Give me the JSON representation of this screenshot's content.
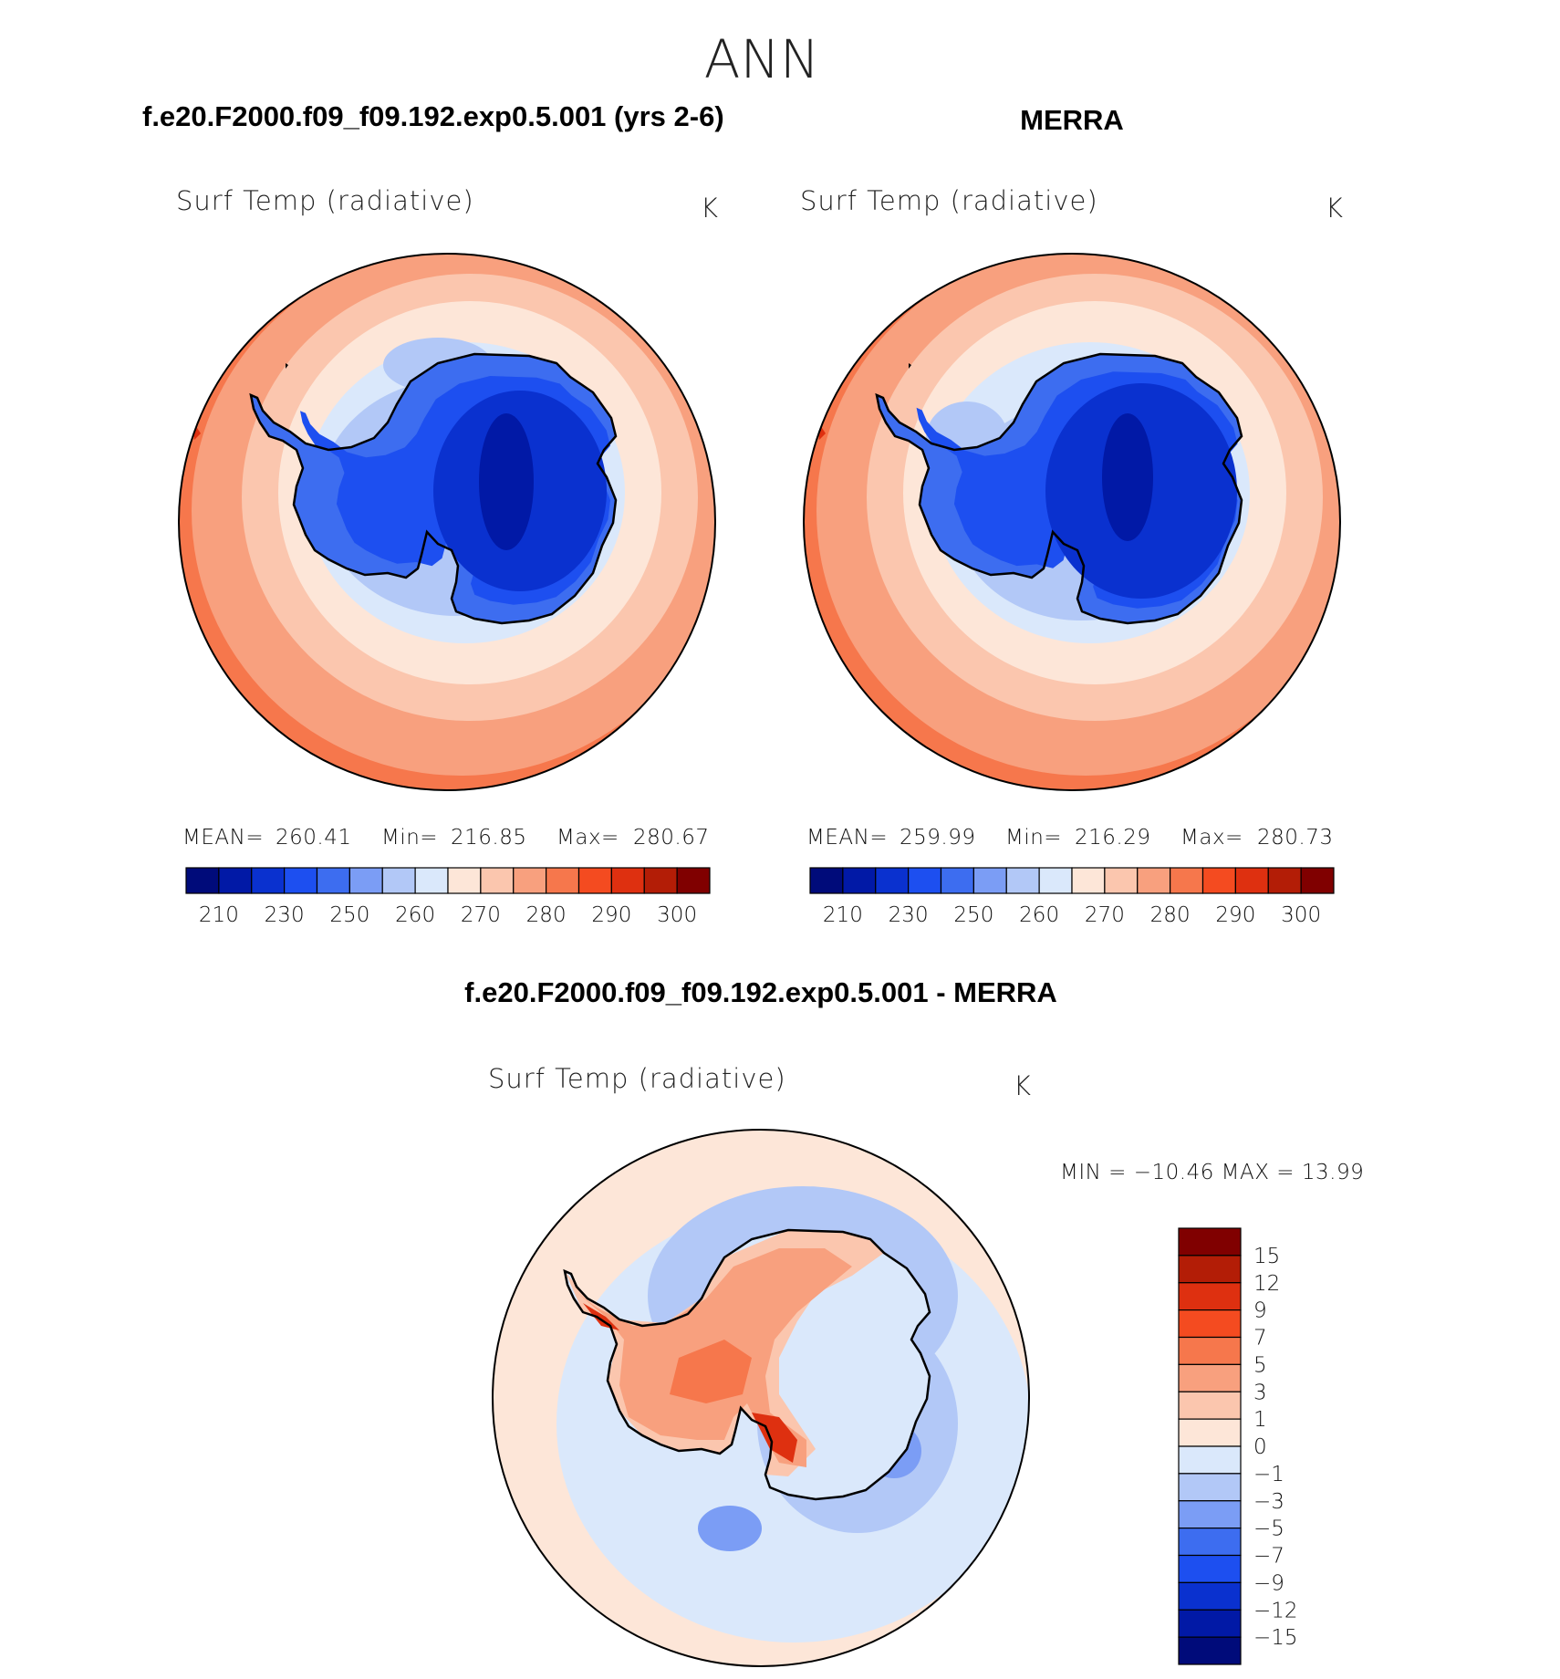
{
  "figure": {
    "season": "ANN",
    "panels": [
      {
        "id": "model",
        "header": "f.e20.F2000.f09_f09.192.exp0.5.001 (yrs 2-6)",
        "variable": "Surf Temp (radiative)",
        "units": "K",
        "stats": {
          "mean_label": "MEAN=",
          "mean": "260.41",
          "min_label": "Min=",
          "min": "216.85",
          "max_label": "Max=",
          "max": "280.67"
        }
      },
      {
        "id": "obs",
        "header": "MERRA",
        "variable": "Surf Temp (radiative)",
        "units": "K",
        "stats": {
          "mean_label": "MEAN=",
          "mean": "259.99",
          "min_label": "Min=",
          "min": "216.29",
          "max_label": "Max=",
          "max": "280.73"
        }
      }
    ],
    "difference": {
      "header": "f.e20.F2000.f09_f09.192.exp0.5.001 - MERRA",
      "variable": "Surf Temp (radiative)",
      "units": "K",
      "minmax": "MIN = −10.46 MAX =   13.99"
    }
  },
  "chart_data": {
    "type": "heatmap",
    "projection": "south polar stereographic",
    "abs_colorbar": {
      "tick_labels": [
        "210",
        "230",
        "250",
        "260",
        "270",
        "280",
        "290",
        "300"
      ],
      "colors": [
        "#000b7a",
        "#0119a6",
        "#0a31cf",
        "#1d4ff0",
        "#3d6df0",
        "#7b9df5",
        "#b2c8f7",
        "#dae8fb",
        "#fde6d8",
        "#fbc6ae",
        "#f8a07e",
        "#f6774c",
        "#f44b20",
        "#de3010",
        "#b31d06",
        "#800000"
      ]
    },
    "diff_colorbar": {
      "tick_labels": [
        "15",
        "12",
        "9",
        "7",
        "5",
        "3",
        "1",
        "0",
        "−1",
        "−3",
        "−5",
        "−7",
        "−9",
        "−12",
        "−15"
      ],
      "colors": [
        "#800000",
        "#b31d06",
        "#de3010",
        "#f44b20",
        "#f6774c",
        "#f8a07e",
        "#fbc6ae",
        "#fde6d8",
        "#dae8fb",
        "#b2c8f7",
        "#7b9df5",
        "#3d6df0",
        "#1d4ff0",
        "#0a31cf",
        "#0119a6",
        "#000b7a"
      ]
    }
  }
}
